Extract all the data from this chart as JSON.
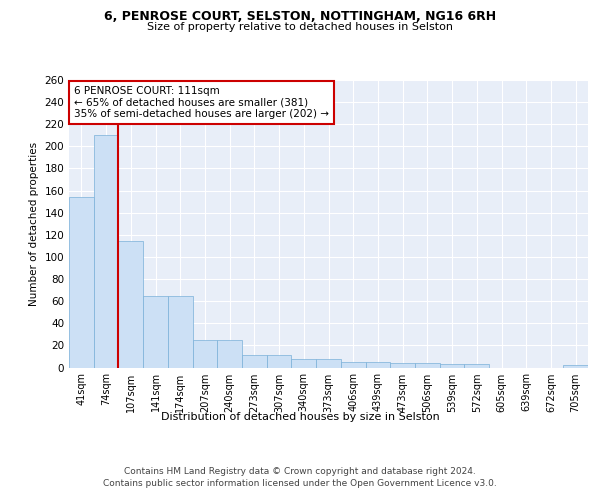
{
  "title1": "6, PENROSE COURT, SELSTON, NOTTINGHAM, NG16 6RH",
  "title2": "Size of property relative to detached houses in Selston",
  "xlabel": "Distribution of detached houses by size in Selston",
  "ylabel": "Number of detached properties",
  "bar_color": "#cce0f5",
  "bar_edge_color": "#7ab0d8",
  "categories": [
    "41sqm",
    "74sqm",
    "107sqm",
    "141sqm",
    "174sqm",
    "207sqm",
    "240sqm",
    "273sqm",
    "307sqm",
    "340sqm",
    "373sqm",
    "406sqm",
    "439sqm",
    "473sqm",
    "506sqm",
    "539sqm",
    "572sqm",
    "605sqm",
    "639sqm",
    "672sqm",
    "705sqm"
  ],
  "values": [
    154,
    210,
    114,
    65,
    65,
    25,
    25,
    11,
    11,
    8,
    8,
    5,
    5,
    4,
    4,
    3,
    3,
    0,
    0,
    0,
    2
  ],
  "vline_x_index": 2,
  "vline_color": "#cc0000",
  "annotation_line1": "6 PENROSE COURT: 111sqm",
  "annotation_line2": "← 65% of detached houses are smaller (381)",
  "annotation_line3": "35% of semi-detached houses are larger (202) →",
  "annotation_box_color": "white",
  "annotation_box_edge_color": "#cc0000",
  "ylim": [
    0,
    260
  ],
  "yticks": [
    0,
    20,
    40,
    60,
    80,
    100,
    120,
    140,
    160,
    180,
    200,
    220,
    240,
    260
  ],
  "bg_color": "#e8eef8",
  "grid_color": "#ffffff",
  "footer_line1": "Contains HM Land Registry data © Crown copyright and database right 2024.",
  "footer_line2": "Contains public sector information licensed under the Open Government Licence v3.0."
}
